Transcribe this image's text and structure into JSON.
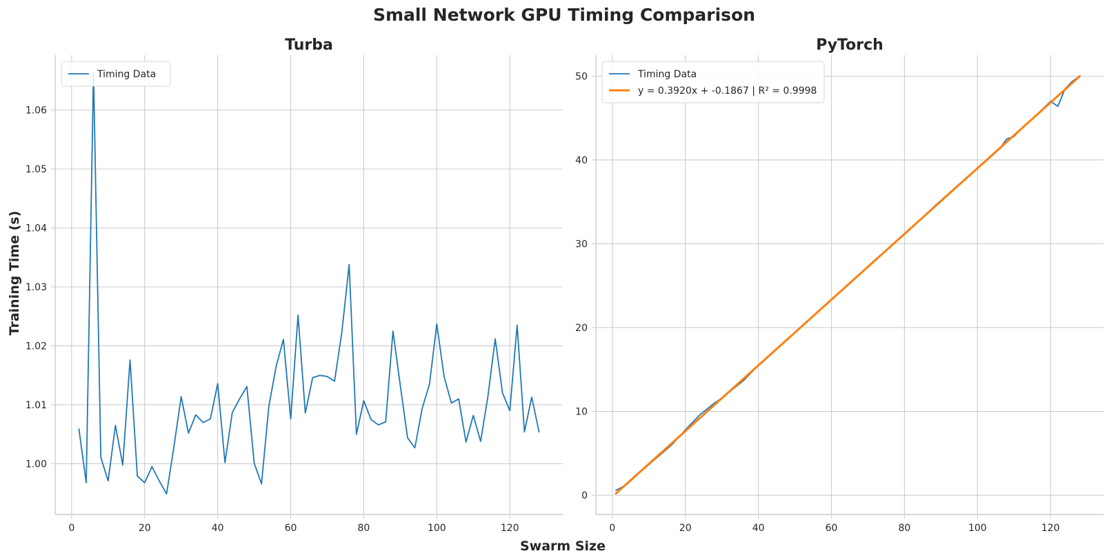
{
  "figure": {
    "title": "Small Network GPU Timing Comparison",
    "xlabel": "Swarm Size",
    "ylabel": "Training Time (s)"
  },
  "chart_data": [
    {
      "type": "line",
      "title": "Turba",
      "xlabel": "Swarm Size",
      "ylabel": "Training Time (s)",
      "xlim": [
        -4.5,
        134.5
      ],
      "ylim": [
        0.9914,
        1.0693
      ],
      "xticks": [
        0,
        20,
        40,
        60,
        80,
        100,
        120
      ],
      "yticks": [
        1.0,
        1.01,
        1.02,
        1.03,
        1.04,
        1.05,
        1.06
      ],
      "ytick_labels": [
        "1.00",
        "1.01",
        "1.02",
        "1.03",
        "1.04",
        "1.05",
        "1.06"
      ],
      "grid": true,
      "legend_position": "upper-left",
      "series": [
        {
          "name": "Timing Data",
          "color": "#1f77b4",
          "x": [
            2,
            4,
            6,
            8,
            10,
            12,
            14,
            16,
            18,
            20,
            22,
            24,
            26,
            28,
            30,
            32,
            34,
            36,
            38,
            40,
            42,
            44,
            46,
            48,
            50,
            52,
            54,
            56,
            58,
            60,
            62,
            64,
            66,
            68,
            70,
            72,
            74,
            76,
            78,
            80,
            82,
            84,
            86,
            88,
            90,
            92,
            94,
            96,
            98,
            100,
            102,
            104,
            106,
            108,
            110,
            112,
            114,
            116,
            118,
            120,
            122,
            124,
            126,
            128
          ],
          "y": [
            1.0059,
            0.9968,
            1.0664,
            1.0011,
            0.9971,
            1.0065,
            0.9998,
            1.0176,
            0.9979,
            0.9968,
            0.9995,
            0.9971,
            0.9949,
            1.0028,
            1.0114,
            1.0052,
            1.0083,
            1.007,
            1.0076,
            1.0136,
            1.0002,
            1.0087,
            1.011,
            1.0131,
            1.0001,
            0.9966,
            1.0097,
            1.0165,
            1.0211,
            1.0076,
            1.0252,
            1.0086,
            1.0146,
            1.015,
            1.0148,
            1.014,
            1.0223,
            1.0338,
            1.005,
            1.0107,
            1.0075,
            1.0066,
            1.0071,
            1.0225,
            1.0133,
            1.0044,
            1.0027,
            1.0094,
            1.0135,
            1.0237,
            1.0148,
            1.0103,
            1.011,
            1.0037,
            1.0082,
            1.0038,
            1.0114,
            1.0212,
            1.012,
            1.009,
            1.0235,
            1.0054,
            1.0113,
            1.0054
          ]
        }
      ]
    },
    {
      "type": "line",
      "title": "PyTorch",
      "xlabel": "Swarm Size",
      "ylabel": "",
      "xlim": [
        -4.5,
        134.5
      ],
      "ylim": [
        -2.3,
        52.5
      ],
      "xticks": [
        0,
        20,
        40,
        60,
        80,
        100,
        120
      ],
      "yticks": [
        0,
        10,
        20,
        30,
        40,
        50
      ],
      "ytick_labels": [
        "0",
        "10",
        "20",
        "30",
        "40",
        "50"
      ],
      "grid": true,
      "legend_position": "upper-left",
      "series": [
        {
          "name": "Timing Data",
          "color": "#1f77b4",
          "x": [
            1,
            2,
            4,
            8,
            12,
            16,
            18,
            20,
            22,
            24,
            26,
            28,
            30,
            32,
            34,
            36,
            40,
            48,
            56,
            64,
            72,
            80,
            88,
            96,
            100,
            104,
            106,
            108,
            110,
            112,
            116,
            120,
            122,
            124,
            126,
            128
          ],
          "y": [
            0.6,
            0.8,
            1.3,
            2.9,
            4.4,
            5.9,
            6.8,
            7.8,
            8.7,
            9.6,
            10.3,
            11.0,
            11.6,
            12.3,
            13.0,
            13.7,
            15.5,
            18.6,
            21.8,
            24.9,
            28.1,
            31.1,
            34.4,
            37.5,
            39.0,
            40.5,
            41.3,
            42.5,
            42.8,
            43.7,
            45.3,
            47.0,
            46.4,
            48.5,
            49.4,
            50.0
          ]
        },
        {
          "name": "y = 0.3920x + -0.1867 | R² = 0.9998",
          "color": "#ff7f0e",
          "x": [
            1,
            128
          ],
          "y": [
            0.2053,
            49.9893
          ]
        }
      ]
    }
  ]
}
